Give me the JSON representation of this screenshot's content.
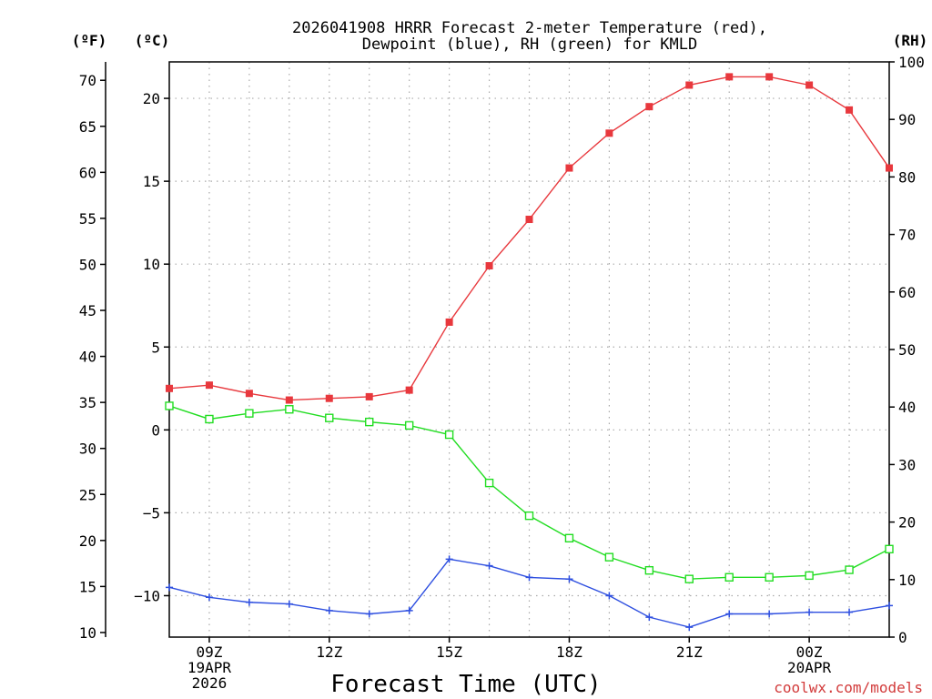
{
  "chart_data": {
    "type": "line",
    "title_lines": [
      "2026041908 HRRR Forecast 2-meter Temperature (red),",
      "Dewpoint (blue), RH (green) for KMLD"
    ],
    "xlabel": "Forecast Time (UTC)",
    "credit": "coolwx.com/models",
    "x_hours": [
      8,
      9,
      10,
      11,
      12,
      13,
      14,
      15,
      16,
      17,
      18,
      19,
      20,
      21,
      22,
      23,
      24,
      25,
      26
    ],
    "x_range": [
      8,
      26
    ],
    "x_ticks": [
      {
        "hour": 9,
        "lines": [
          "09Z",
          "19APR",
          "2026"
        ]
      },
      {
        "hour": 12,
        "lines": [
          "12Z"
        ]
      },
      {
        "hour": 15,
        "lines": [
          "15Z"
        ]
      },
      {
        "hour": 18,
        "lines": [
          "18Z"
        ]
      },
      {
        "hour": 21,
        "lines": [
          "21Z"
        ]
      },
      {
        "hour": 24,
        "lines": [
          "00Z",
          "20APR"
        ]
      }
    ],
    "axes": {
      "fahrenheit": {
        "unit_label": "(ºF)",
        "range": [
          9.5,
          72
        ],
        "ticks": [
          10,
          15,
          20,
          25,
          30,
          35,
          40,
          45,
          50,
          55,
          60,
          65,
          70
        ]
      },
      "celsius": {
        "unit_label": "(ºC)",
        "range": [
          -12.5,
          22.2
        ],
        "ticks": [
          -10,
          -5,
          0,
          5,
          10,
          15,
          20
        ]
      },
      "rh": {
        "unit_label": "(RH)",
        "range": [
          0,
          100
        ],
        "ticks": [
          0,
          10,
          20,
          30,
          40,
          50,
          60,
          70,
          80,
          90,
          100
        ]
      }
    },
    "series": [
      {
        "name": "Temperature",
        "axis": "celsius",
        "color": "#e8383d",
        "marker": "filled-square",
        "values": [
          2.5,
          2.7,
          2.2,
          1.8,
          1.9,
          2.0,
          2.4,
          6.5,
          9.9,
          12.7,
          15.8,
          17.9,
          19.5,
          20.8,
          21.3,
          21.3,
          20.8,
          19.3,
          15.8
        ]
      },
      {
        "name": "Dewpoint",
        "axis": "celsius",
        "color": "#2e4fe0",
        "marker": "plus",
        "values": [
          -9.5,
          -10.1,
          -10.4,
          -10.5,
          -10.9,
          -11.1,
          -10.9,
          -7.8,
          -8.2,
          -8.9,
          -9.0,
          -10.0,
          -11.3,
          -11.9,
          -11.1,
          -11.1,
          -11.0,
          -11.0,
          -10.6
        ]
      },
      {
        "name": "RH",
        "axis": "rh",
        "color": "#22dd22",
        "marker": "open-square",
        "values": [
          40.2,
          37.9,
          38.9,
          39.6,
          38.1,
          37.4,
          36.8,
          35.2,
          26.8,
          21.1,
          17.2,
          13.9,
          11.6,
          10.1,
          10.4,
          10.4,
          10.7,
          11.7,
          15.3
        ]
      }
    ]
  }
}
